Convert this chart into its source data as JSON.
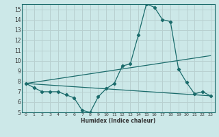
{
  "xlabel": "Humidex (Indice chaleur)",
  "bg_color": "#cce8e8",
  "grid_color": "#b8d0d0",
  "line_color": "#1a6b6b",
  "xlim": [
    -0.5,
    23.5
  ],
  "ylim": [
    5,
    15.5
  ],
  "xticks": [
    0,
    1,
    2,
    3,
    4,
    5,
    6,
    7,
    8,
    9,
    10,
    11,
    12,
    13,
    14,
    15,
    16,
    17,
    18,
    19,
    20,
    21,
    22,
    23
  ],
  "yticks": [
    5,
    6,
    7,
    8,
    9,
    10,
    11,
    12,
    13,
    14,
    15
  ],
  "series1_x": [
    0,
    1,
    2,
    3,
    4,
    5,
    6,
    7,
    8,
    9,
    10,
    11,
    12,
    13,
    14,
    15,
    16,
    17,
    18,
    19,
    20,
    21,
    22,
    23
  ],
  "series1_y": [
    7.8,
    7.4,
    7.0,
    7.0,
    7.0,
    6.7,
    6.4,
    5.2,
    5.0,
    6.5,
    7.3,
    7.8,
    9.5,
    9.7,
    12.5,
    15.5,
    15.2,
    14.0,
    13.8,
    9.2,
    7.9,
    6.8,
    7.0,
    6.6
  ],
  "series2_x": [
    0,
    23
  ],
  "series2_y": [
    7.8,
    6.6
  ],
  "series3_x": [
    0,
    23
  ],
  "series3_y": [
    7.8,
    10.5
  ]
}
